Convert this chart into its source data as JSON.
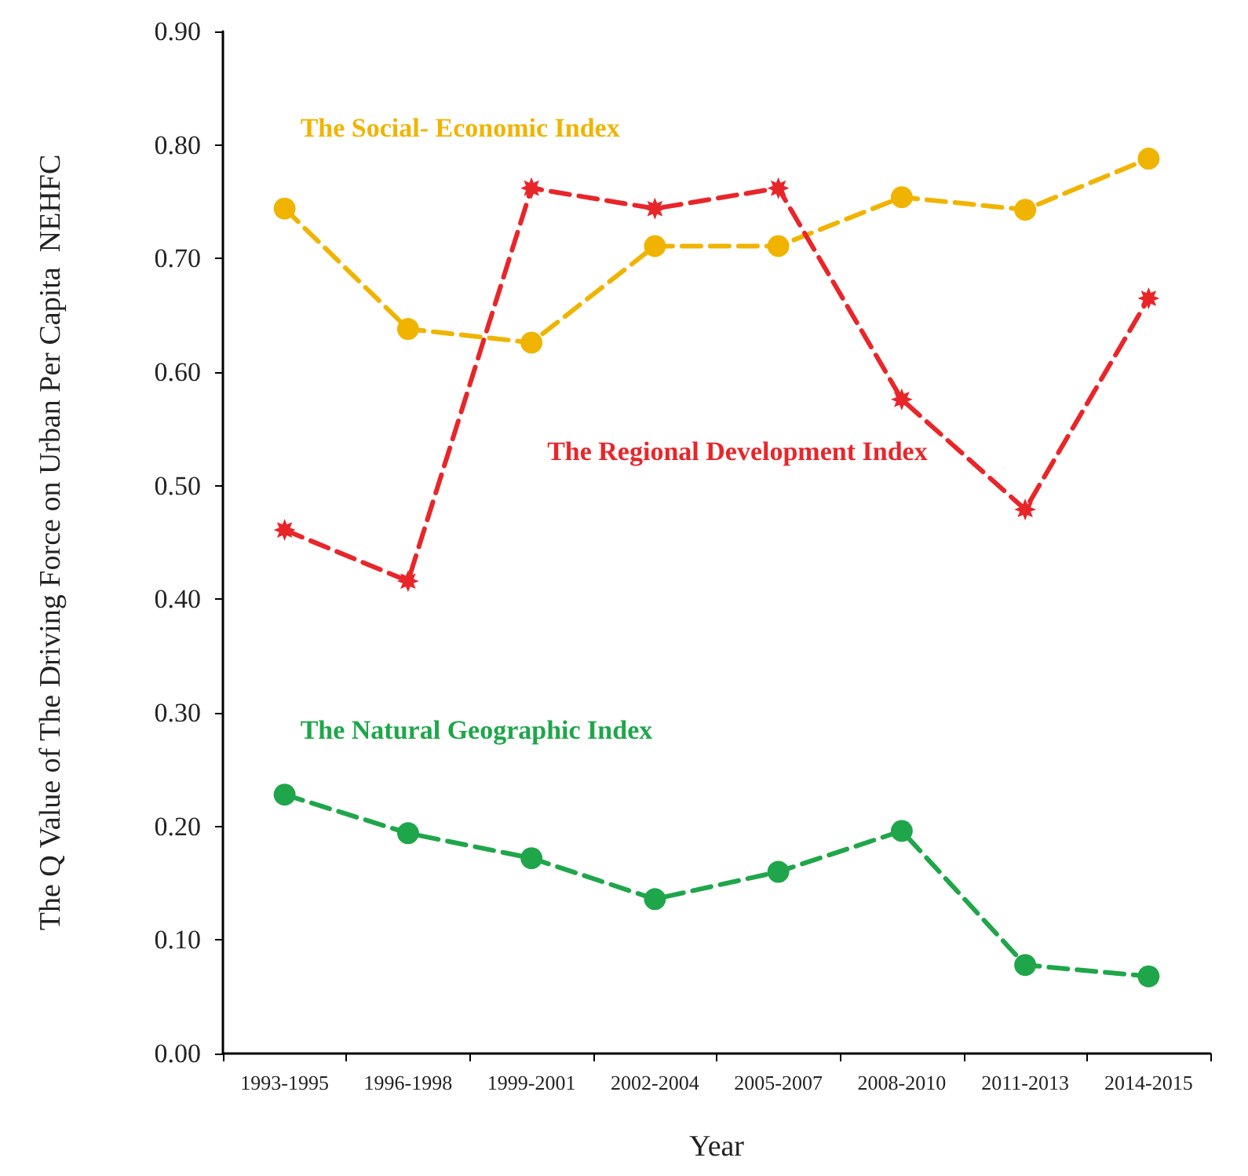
{
  "chart_data": {
    "type": "line",
    "xlabel": "Year",
    "ylabel": "The Q Value of The Driving Force on Urban Per Capita  NEHFC",
    "categories": [
      "1993-1995",
      "1996-1998",
      "1999-2001",
      "2002-2004",
      "2005-2007",
      "2008-2010",
      "2011-2013",
      "2014-2015"
    ],
    "series": [
      {
        "name": "The Social- Economic Index",
        "color": "#f0b400",
        "marker": "circle",
        "values": [
          0.744,
          0.638,
          0.626,
          0.711,
          0.711,
          0.754,
          0.743,
          0.788
        ]
      },
      {
        "name": "The Regional Development Index",
        "color": "#e8262a",
        "marker": "star",
        "values": [
          0.461,
          0.416,
          0.762,
          0.744,
          0.762,
          0.576,
          0.479,
          0.665
        ]
      },
      {
        "name": "The Natural Geographic Index",
        "color": "#1fa64a",
        "marker": "circle",
        "values": [
          0.228,
          0.194,
          0.172,
          0.136,
          0.16,
          0.196,
          0.078,
          0.068
        ]
      }
    ],
    "ylim": [
      0,
      0.9
    ],
    "yticks": [
      {
        "value": 0,
        "label": "0.00"
      },
      {
        "value": 0.1,
        "label": "0.10"
      },
      {
        "value": 0.2,
        "label": "0.20"
      },
      {
        "value": 0.3,
        "label": "0.30"
      },
      {
        "value": 0.4,
        "label": "0.40"
      },
      {
        "value": 0.5,
        "label": "0.50"
      },
      {
        "value": 0.6,
        "label": "0.60"
      },
      {
        "value": 0.7,
        "label": "0.70"
      },
      {
        "value": 0.8,
        "label": "0.80"
      },
      {
        "value": 0.9,
        "label": "0.90"
      }
    ],
    "grid": false,
    "legend": false,
    "line_style": "dashed"
  }
}
